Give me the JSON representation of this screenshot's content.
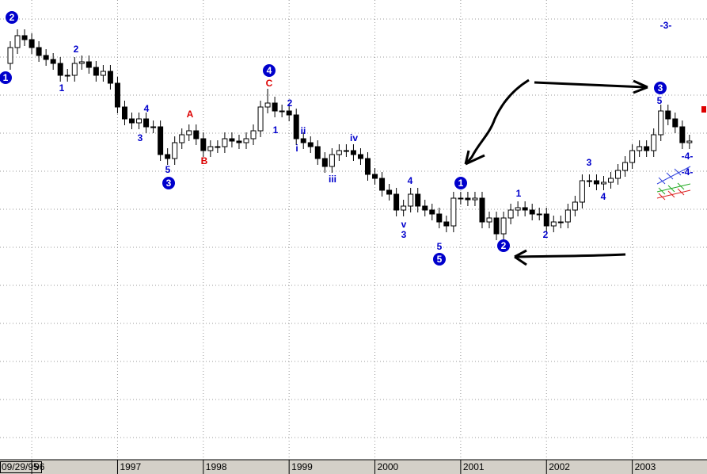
{
  "chart_data": {
    "type": "candlestick",
    "ylim": [
      0,
      580
    ],
    "xlim": [
      -1,
      97
    ],
    "xticks": [
      {
        "value": 0,
        "label": "09/29/95"
      },
      {
        "value": 3,
        "label": "96"
      },
      {
        "value": 15,
        "label": "1997"
      },
      {
        "value": 27,
        "label": "1998"
      },
      {
        "value": 39,
        "label": "1999"
      },
      {
        "value": 51,
        "label": "2000"
      },
      {
        "value": 63,
        "label": "2001"
      },
      {
        "value": 75,
        "label": "2002"
      },
      {
        "value": 87,
        "label": "2003"
      }
    ],
    "open": [
      500,
      520,
      535,
      530,
      520,
      510,
      505,
      500,
      485,
      485,
      500,
      502,
      495,
      485,
      490,
      475,
      445,
      430,
      425,
      430,
      420,
      420,
      385,
      380,
      400,
      410,
      415,
      405,
      390,
      395,
      395,
      405,
      402,
      400,
      405,
      415,
      445,
      450,
      440,
      440,
      435,
      405,
      400,
      395,
      380,
      370,
      385,
      390,
      390,
      385,
      380,
      360,
      355,
      340,
      335,
      315,
      320,
      335,
      320,
      315,
      310,
      300,
      295,
      330,
      330,
      328,
      330,
      300,
      305,
      285,
      305,
      315,
      318,
      315,
      310,
      310,
      295,
      300,
      300,
      315,
      325,
      352,
      352,
      348,
      350,
      355,
      365,
      375,
      390,
      395,
      390,
      410,
      440,
      430,
      420,
      400
    ],
    "close": [
      520,
      535,
      530,
      520,
      510,
      505,
      500,
      485,
      485,
      500,
      502,
      495,
      485,
      490,
      475,
      445,
      430,
      425,
      430,
      420,
      420,
      385,
      380,
      400,
      410,
      415,
      405,
      390,
      395,
      395,
      405,
      402,
      400,
      405,
      415,
      445,
      450,
      440,
      440,
      435,
      405,
      400,
      395,
      380,
      370,
      385,
      390,
      390,
      385,
      380,
      360,
      355,
      340,
      335,
      315,
      320,
      335,
      320,
      315,
      310,
      300,
      295,
      330,
      330,
      328,
      330,
      300,
      305,
      285,
      305,
      315,
      318,
      315,
      310,
      310,
      295,
      300,
      300,
      315,
      325,
      352,
      352,
      348,
      350,
      355,
      365,
      375,
      390,
      395,
      390,
      410,
      440,
      430,
      420,
      400,
      402
    ],
    "high": [
      528,
      543,
      543,
      538,
      528,
      518,
      513,
      508,
      493,
      508,
      510,
      510,
      503,
      498,
      498,
      483,
      453,
      438,
      438,
      438,
      428,
      428,
      393,
      408,
      418,
      423,
      423,
      413,
      403,
      403,
      413,
      413,
      410,
      413,
      423,
      453,
      468,
      458,
      448,
      448,
      443,
      413,
      408,
      403,
      388,
      393,
      398,
      398,
      398,
      393,
      388,
      368,
      363,
      348,
      343,
      328,
      343,
      343,
      328,
      323,
      318,
      308,
      338,
      338,
      338,
      338,
      338,
      313,
      313,
      313,
      323,
      326,
      326,
      323,
      318,
      318,
      308,
      308,
      323,
      333,
      360,
      360,
      360,
      358,
      363,
      373,
      383,
      398,
      403,
      403,
      418,
      448,
      448,
      438,
      428,
      410
    ],
    "low": [
      492,
      512,
      522,
      512,
      502,
      497,
      492,
      477,
      477,
      477,
      492,
      487,
      477,
      477,
      467,
      437,
      422,
      417,
      417,
      412,
      412,
      377,
      372,
      372,
      392,
      402,
      397,
      382,
      382,
      387,
      387,
      394,
      392,
      392,
      397,
      407,
      437,
      432,
      432,
      427,
      397,
      392,
      387,
      372,
      362,
      362,
      377,
      382,
      377,
      372,
      352,
      347,
      332,
      327,
      307,
      307,
      312,
      312,
      307,
      302,
      292,
      287,
      287,
      322,
      320,
      320,
      292,
      292,
      277,
      277,
      297,
      307,
      307,
      302,
      302,
      287,
      287,
      292,
      292,
      307,
      317,
      344,
      340,
      340,
      342,
      347,
      357,
      367,
      382,
      382,
      382,
      402,
      422,
      412,
      392,
      392
    ],
    "annotations": [
      {
        "text": "1",
        "color": "#0000cc"
      },
      {
        "text": "2",
        "color": "#0000cc"
      },
      {
        "text": "2",
        "color": "#0000cc"
      },
      {
        "text": "1",
        "color": "#0000cc"
      },
      {
        "text": "4",
        "color": "#0000cc"
      },
      {
        "text": "3",
        "color": "#0000cc"
      },
      {
        "text": "5",
        "color": "#0000cc"
      },
      {
        "text": "3",
        "color": "#0000cc"
      },
      {
        "text": "A",
        "color": "#dd0000"
      },
      {
        "text": "B",
        "color": "#dd0000"
      },
      {
        "text": "4",
        "color": "#0000cc"
      },
      {
        "text": "C",
        "color": "#dd0000"
      },
      {
        "text": "2",
        "color": "#0000cc"
      },
      {
        "text": "1",
        "color": "#0000cc"
      },
      {
        "text": "ii",
        "color": "#0000cc"
      },
      {
        "text": "i",
        "color": "#0000cc"
      },
      {
        "text": "iv",
        "color": "#0000cc"
      },
      {
        "text": "iii",
        "color": "#0000cc"
      },
      {
        "text": "4",
        "color": "#0000cc"
      },
      {
        "text": "v",
        "color": "#0000cc"
      },
      {
        "text": "3",
        "color": "#0000cc"
      },
      {
        "text": "5",
        "color": "#0000cc"
      },
      {
        "text": "5",
        "color": "#0000cc"
      },
      {
        "text": "1",
        "color": "#0000cc"
      },
      {
        "text": "1",
        "color": "#0000cc"
      },
      {
        "text": "2",
        "color": "#0000cc"
      },
      {
        "text": "2",
        "color": "#0000cc"
      },
      {
        "text": "3",
        "color": "#0000cc"
      },
      {
        "text": "4",
        "color": "#0000cc"
      },
      {
        "text": "3",
        "color": "#0000cc"
      },
      {
        "text": "5",
        "color": "#0000cc"
      },
      {
        "text": "-3-",
        "color": "#0000cc"
      },
      {
        "text": "-4-",
        "color": "#0000cc"
      },
      {
        "text": "-4-",
        "color": "#0000cc"
      }
    ]
  }
}
